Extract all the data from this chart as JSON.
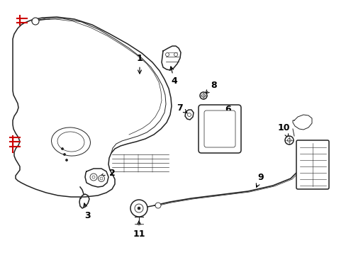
{
  "bg_color": "#ffffff",
  "line_color": "#222222",
  "red_color": "#cc0000",
  "label_color": "#000000",
  "figsize": [
    4.89,
    3.6
  ],
  "dpi": 100
}
